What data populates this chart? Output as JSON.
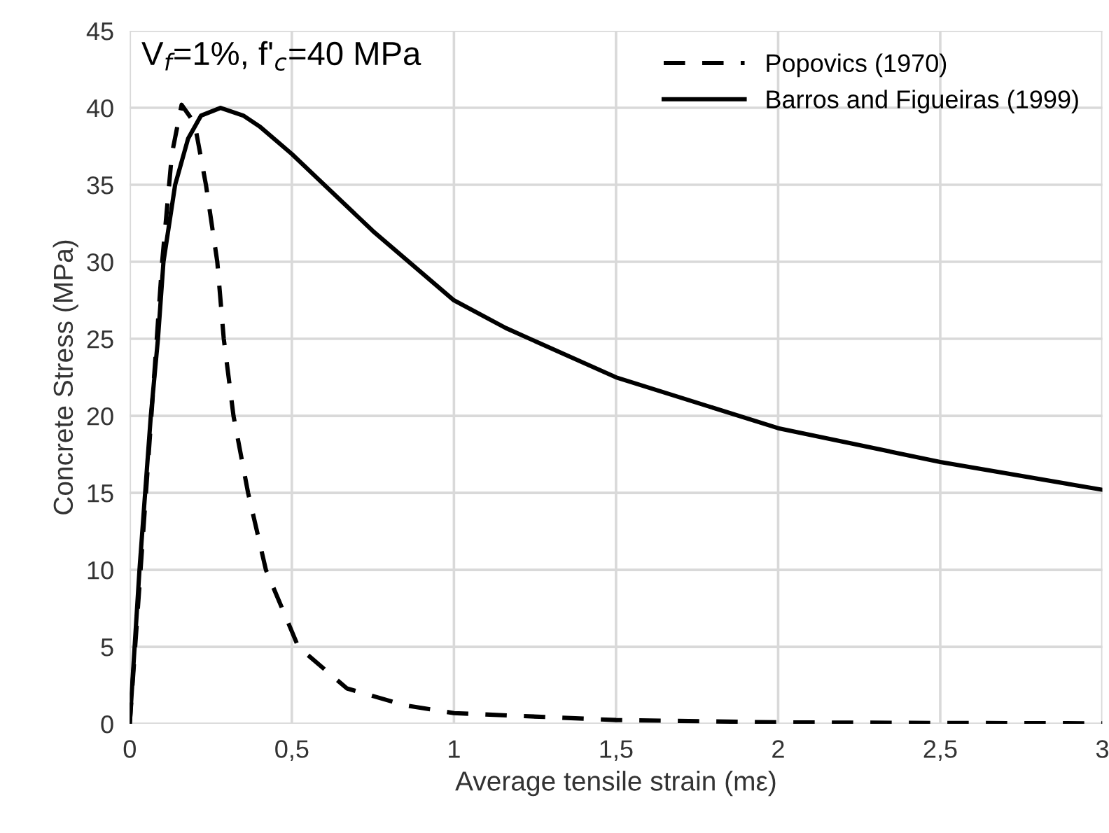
{
  "chart_data": {
    "type": "line",
    "xlabel": "Average tensile strain (mε)",
    "ylabel": "Concrete Stress (MPa)",
    "annotations": [
      "V$_{f}$=1%, f'$_{c}$=40 MPa"
    ],
    "xlim": [
      0,
      3
    ],
    "xticks": [
      0,
      {
        "value": 0.5,
        "label": "0,5"
      },
      1,
      {
        "value": 1.5,
        "label": "1,5"
      },
      2,
      {
        "value": 2.5,
        "label": "2,5"
      },
      3
    ],
    "ylim": [
      0,
      45
    ],
    "yticks": [
      0,
      5,
      10,
      15,
      20,
      25,
      30,
      35,
      40,
      45
    ],
    "grid": true,
    "legend": "top right",
    "marker": "none",
    "series": [
      {
        "name": "Popovics (1970)",
        "color": "#000000",
        "line_style": "dashed",
        "x": [
          0,
          0.05,
          0.1,
          0.13,
          0.16,
          0.2,
          0.235,
          0.27,
          0.29,
          0.32,
          0.365,
          0.42,
          0.52,
          0.67,
          0.85,
          1.0,
          1.5,
          2.0,
          2.5,
          3.0
        ],
        "values": [
          0,
          15,
          30,
          37,
          40.2,
          39,
          35,
          30,
          25,
          20,
          15,
          10,
          5,
          2.3,
          1.2,
          0.7,
          0.25,
          0.1,
          0.06,
          0.04
        ]
      },
      {
        "name": "Barros and Figueiras (1999)",
        "color": "#000000",
        "line_style": "solid",
        "x": [
          0,
          0.03,
          0.065,
          0.087,
          0.104,
          0.14,
          0.18,
          0.22,
          0.28,
          0.35,
          0.4,
          0.5,
          0.75,
          1.0,
          1.16,
          1.5,
          2.0,
          2.5,
          3.0
        ],
        "values": [
          0,
          10,
          20,
          25,
          30,
          35,
          38,
          39.5,
          40,
          39.5,
          38.8,
          37,
          32,
          27.5,
          25.7,
          22.5,
          19.2,
          17,
          15.2
        ]
      }
    ]
  }
}
